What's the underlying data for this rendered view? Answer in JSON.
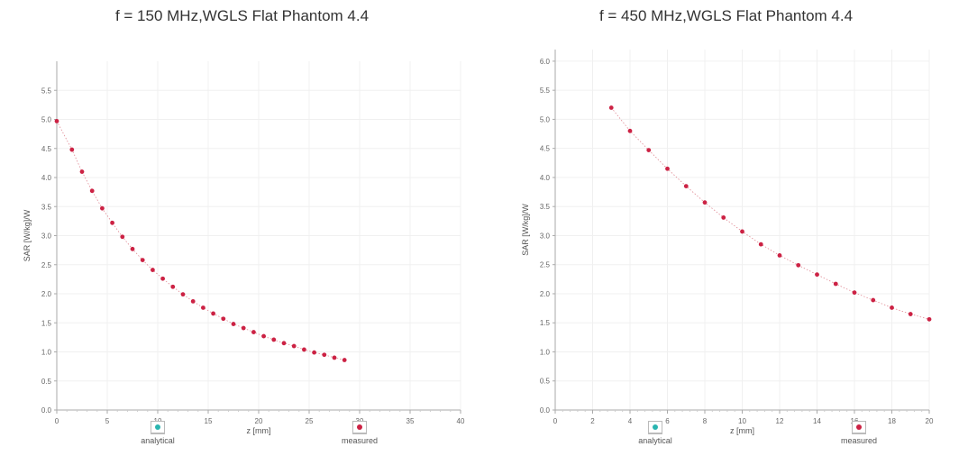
{
  "colors": {
    "measured": "#cc2244",
    "analytical": "#2ab5b0",
    "fit_line": "#e08a94",
    "axis": "#aaaaaa",
    "grid": "#f0f0f0"
  },
  "legend": {
    "analytical_label": "analytical",
    "measured_label": "measured"
  },
  "chart_data": [
    {
      "type": "scatter",
      "title": "f = 150 MHz,WGLS Flat Phantom 4.4",
      "xlabel": "z [mm]",
      "ylabel": "SAR [W/kg]/W",
      "xlim": [
        0,
        40
      ],
      "ylim": [
        0,
        6.0
      ],
      "xticks": [
        0,
        5,
        10,
        15,
        20,
        25,
        30,
        35,
        40
      ],
      "yticks": [
        0.0,
        0.5,
        1.0,
        1.5,
        2.0,
        2.5,
        3.0,
        3.5,
        4.0,
        4.5,
        5.0,
        5.5
      ],
      "ytick_decimals": 1,
      "series": [
        {
          "name": "measured",
          "x": [
            0,
            1.5,
            2.5,
            3.5,
            4.5,
            5.5,
            6.5,
            7.5,
            8.5,
            9.5,
            10.5,
            11.5,
            12.5,
            13.5,
            14.5,
            15.5,
            16.5,
            17.5,
            18.5,
            19.5,
            20.5,
            21.5,
            22.5,
            23.5,
            24.5,
            25.5,
            26.5,
            27.5,
            28.5
          ],
          "y": [
            4.97,
            4.48,
            4.1,
            3.77,
            3.47,
            3.22,
            2.98,
            2.77,
            2.58,
            2.41,
            2.26,
            2.12,
            1.99,
            1.87,
            1.76,
            1.66,
            1.57,
            1.48,
            1.41,
            1.34,
            1.27,
            1.21,
            1.15,
            1.1,
            1.04,
            0.99,
            0.95,
            0.9,
            0.86
          ]
        }
      ]
    },
    {
      "type": "scatter",
      "title": "f = 450 MHz,WGLS Flat Phantom 4.4",
      "xlabel": "z [mm]",
      "ylabel": "SAR [W/kg]/W",
      "xlim": [
        0,
        20
      ],
      "ylim": [
        0,
        6.2
      ],
      "xticks": [
        0,
        2,
        4,
        6,
        8,
        10,
        12,
        14,
        16,
        18,
        20
      ],
      "yticks": [
        0.0,
        0.5,
        1.0,
        1.5,
        2.0,
        2.5,
        3.0,
        3.5,
        4.0,
        4.5,
        5.0,
        5.5,
        6.0
      ],
      "ytick_decimals": 1,
      "series": [
        {
          "name": "measured",
          "x": [
            3,
            4,
            5,
            6,
            7,
            8,
            9,
            10,
            11,
            12,
            13,
            14,
            15,
            16,
            17,
            18,
            19,
            20
          ],
          "y": [
            5.2,
            4.8,
            4.47,
            4.15,
            3.85,
            3.57,
            3.31,
            3.07,
            2.85,
            2.66,
            2.49,
            2.33,
            2.17,
            2.02,
            1.89,
            1.76,
            1.65,
            1.56
          ]
        }
      ]
    }
  ]
}
